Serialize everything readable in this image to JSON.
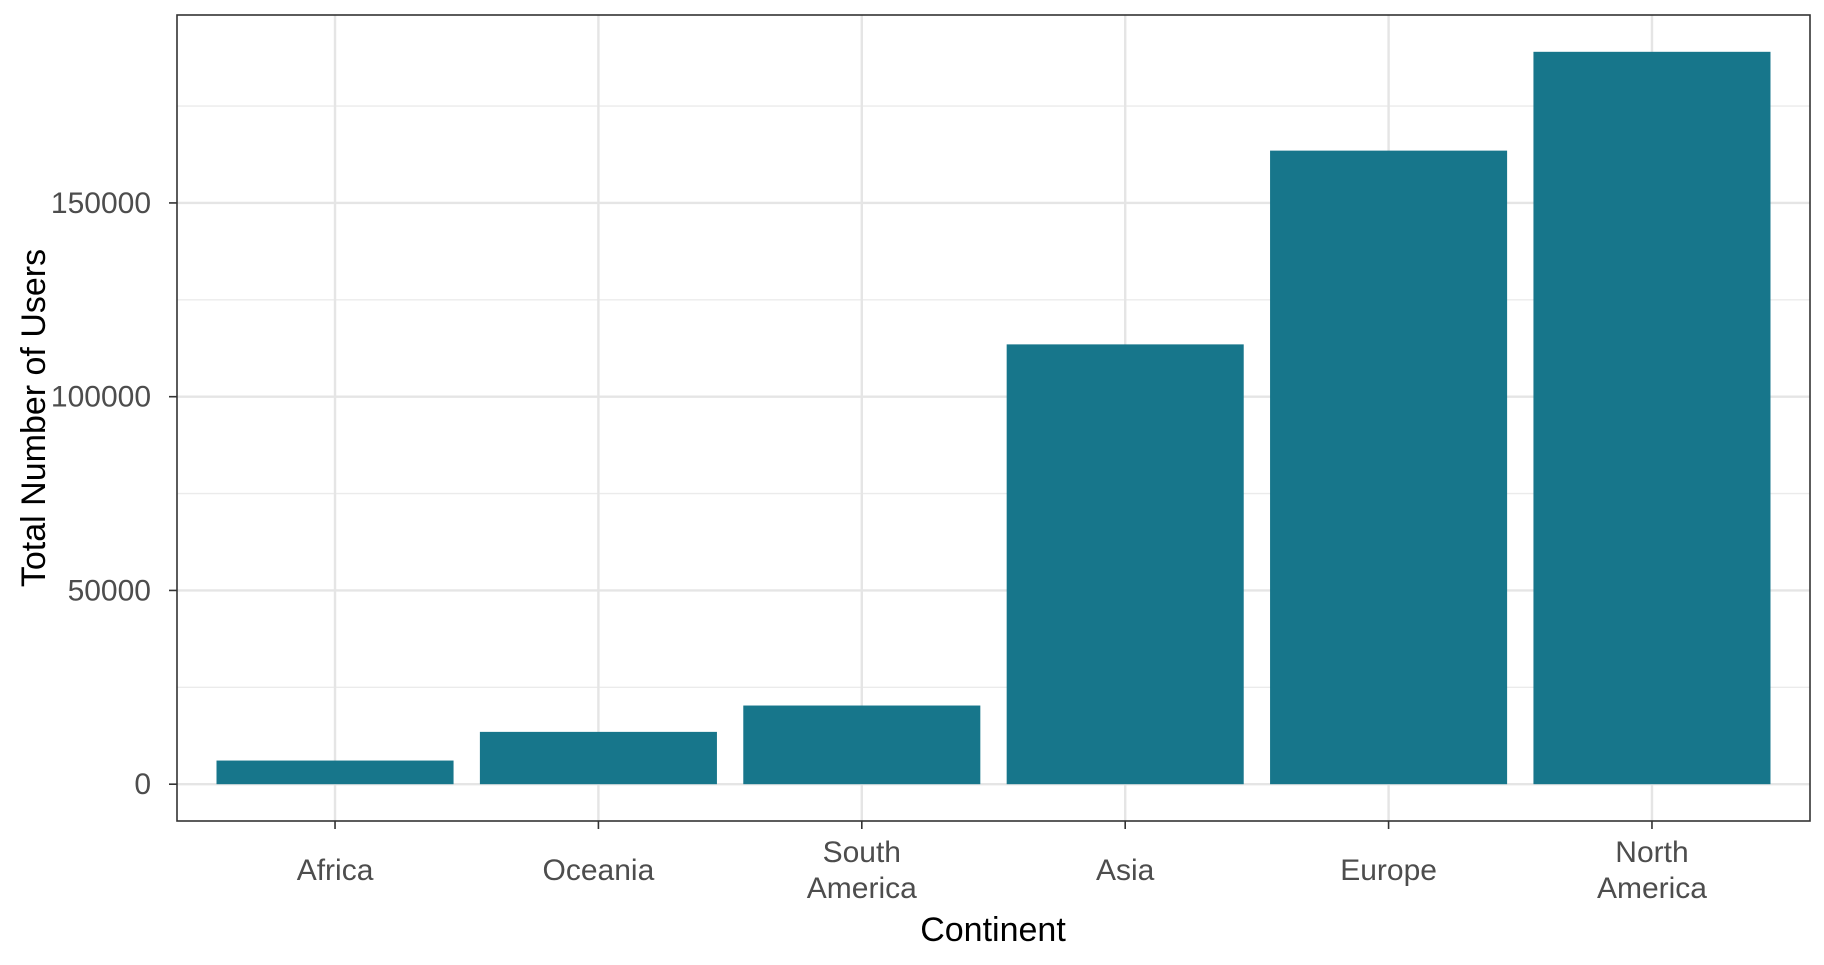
{
  "chart_data": {
    "type": "bar",
    "title": "",
    "xlabel": "Continent",
    "ylabel": "Total Number of Users",
    "categories": [
      [
        "Africa"
      ],
      [
        "Oceania"
      ],
      [
        "South",
        "America"
      ],
      [
        "Asia"
      ],
      [
        "Europe"
      ],
      [
        "North",
        "America"
      ]
    ],
    "values": [
      6100,
      13500,
      20300,
      113500,
      163500,
      189000
    ],
    "ylim": [
      -9500,
      198500
    ],
    "y_ticks": [
      0,
      50000,
      100000,
      150000
    ],
    "y_tick_labels": [
      "0",
      "50000",
      "100000",
      "150000"
    ],
    "grid": true,
    "bar_color": "#17768b",
    "legend": "none"
  }
}
